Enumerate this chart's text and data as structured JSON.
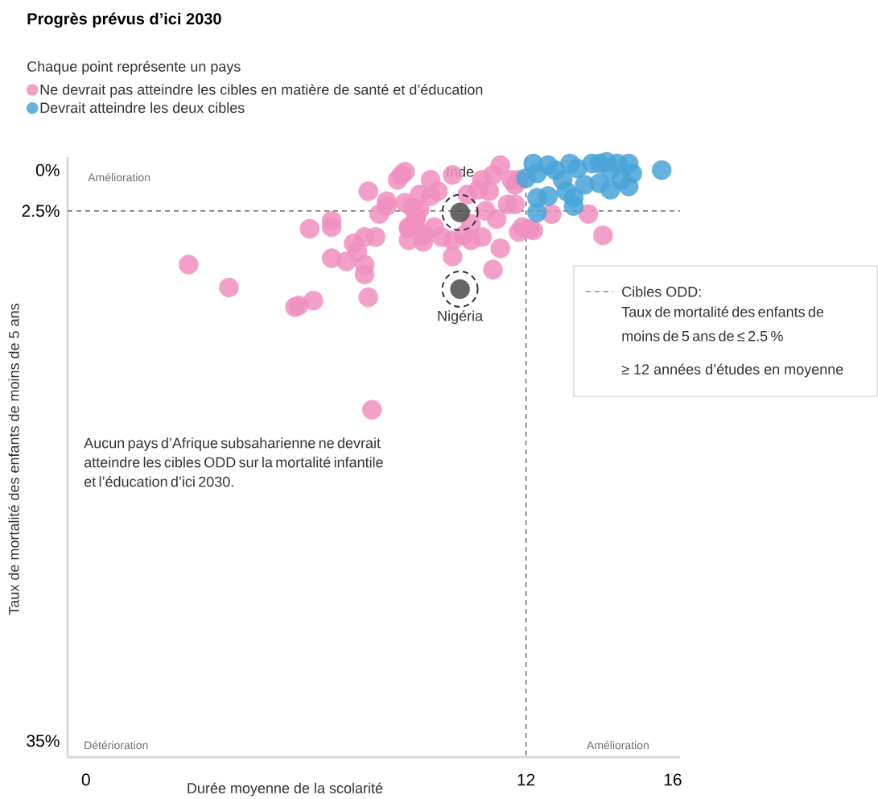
{
  "chart_data": {
    "type": "scatter",
    "title": "Progrès prévus d’ici 2030",
    "subtitle": "Chaque point représente un pays",
    "xlabel": "Durée moyenne de la scolarité",
    "ylabel": "Taux de mortalité des enfants de moins de 5 ans",
    "xlim": [
      -0.5,
      16.2
    ],
    "ylim": [
      36,
      -0.8
    ],
    "xticks": [
      0,
      12,
      16
    ],
    "yticks": [
      {
        "value": 0,
        "label": "0%"
      },
      {
        "value": 2.5,
        "label": "2.5%"
      },
      {
        "value": 35,
        "label": "35%"
      }
    ],
    "legend": "top left",
    "marker": "circle",
    "series": [
      {
        "name": "Ne devrait pas atteindre les cibles en matière de santé et d’éducation",
        "color": "#f08fc0",
        "x": [
          2.8,
          3.9,
          5.7,
          5.8,
          6.2,
          7.8,
          7.7,
          7.6,
          7.6,
          7.4,
          7.3,
          7.1,
          6.7,
          6.1,
          6.7,
          6.7,
          7.6,
          7.9,
          7.7,
          8.0,
          8.2,
          8.2,
          8.7,
          8.5,
          8.7,
          9.0,
          9.1,
          8.8,
          8.8,
          9.2,
          9.2,
          9.4,
          9.4,
          11.3,
          11.1,
          10.8,
          11.0,
          10.7,
          10.4,
          10.0,
          9.6,
          9.1,
          8.9,
          9.0,
          8.8,
          9.2,
          9.5,
          9.7,
          10.0,
          10.3,
          10.5,
          10.8,
          11.2,
          11.3,
          10.0,
          11.1,
          10.9,
          10.5,
          11.8,
          11.7,
          11.9,
          12.1,
          11.8,
          12.7,
          11.5,
          8.6,
          11.6,
          11.7,
          12.2,
          13.7,
          14.1
        ],
        "values": [
          5.8,
          7.2,
          8.4,
          8.3,
          8.0,
          14.7,
          7.8,
          6.4,
          5.8,
          5.0,
          4.5,
          5.6,
          5.4,
          3.6,
          3.1,
          3.5,
          4.1,
          4.1,
          1.3,
          2.7,
          1.9,
          2.2,
          0.1,
          0.6,
          2.0,
          2.9,
          2.4,
          3.6,
          4.3,
          3.9,
          4.4,
          0.6,
          1.6,
          -0.3,
          0.3,
          0.6,
          1.3,
          1.2,
          1.5,
          0.3,
          1.3,
          1.5,
          2.3,
          3.0,
          3.5,
          4.0,
          3.5,
          4.1,
          4.3,
          4.0,
          4.3,
          4.1,
          3.0,
          4.8,
          5.3,
          6.1,
          2.5,
          3.3,
          0.6,
          0.9,
          3.5,
          3.6,
          3.8,
          2.7,
          2.1,
          0.3,
          0.6,
          2.1,
          3.7,
          2.7,
          4.0
        ]
      },
      {
        "name": "Devrait atteindre les deux cibles",
        "color": "#4aa3d8",
        "x": [
          12.2,
          12.0,
          12.3,
          12.6,
          12.8,
          13.2,
          13.0,
          12.6,
          12.3,
          13.1,
          13.3,
          13.3,
          13.8,
          14.0,
          14.2,
          14.3,
          14.0,
          14.3,
          14.6,
          14.8,
          14.9,
          14.8,
          15.7,
          12.3,
          13.6,
          14.5,
          13.4
        ],
        "values": [
          -0.4,
          0.5,
          0.2,
          -0.3,
          0.0,
          -0.4,
          0.6,
          1.6,
          1.7,
          1.3,
          1.7,
          2.2,
          -0.4,
          -0.4,
          -0.5,
          0.0,
          0.8,
          1.2,
          0.6,
          -0.4,
          0.2,
          1.0,
          0.0,
          2.6,
          0.9,
          -0.4,
          -0.1
        ]
      },
      {
        "color": "#4d4a4a",
        "x": [
          10.2,
          10.2
        ],
        "values": [
          2.6,
          7.3
        ]
      }
    ],
    "ref_lines": [
      {
        "axis": "y",
        "value": 2.5,
        "label": "Cibles ODD:",
        "color": "#4d4d4d",
        "line_style": "dashed"
      },
      {
        "axis": "x",
        "value": 12,
        "color": "#4d4d4d",
        "line_style": "dashed"
      }
    ],
    "annotations": [
      "Amélioration",
      "Détérioration",
      "Amélioration",
      "Aucun pays d’Afrique subsaharienne ne devrait atteindre les cibles ODD sur la mortalité infantile et l’éducation d’ici 2030.",
      {
        "text": "Inde",
        "x": 10.2,
        "y": 2.6
      },
      {
        "text": "Nigéria",
        "x": 10.2,
        "y": 7.3
      },
      "Taux de mortalité des enfants de moins de 5 ans de ≤ 2.5 %",
      "≥ 12 années d’études en moyenne"
    ]
  }
}
